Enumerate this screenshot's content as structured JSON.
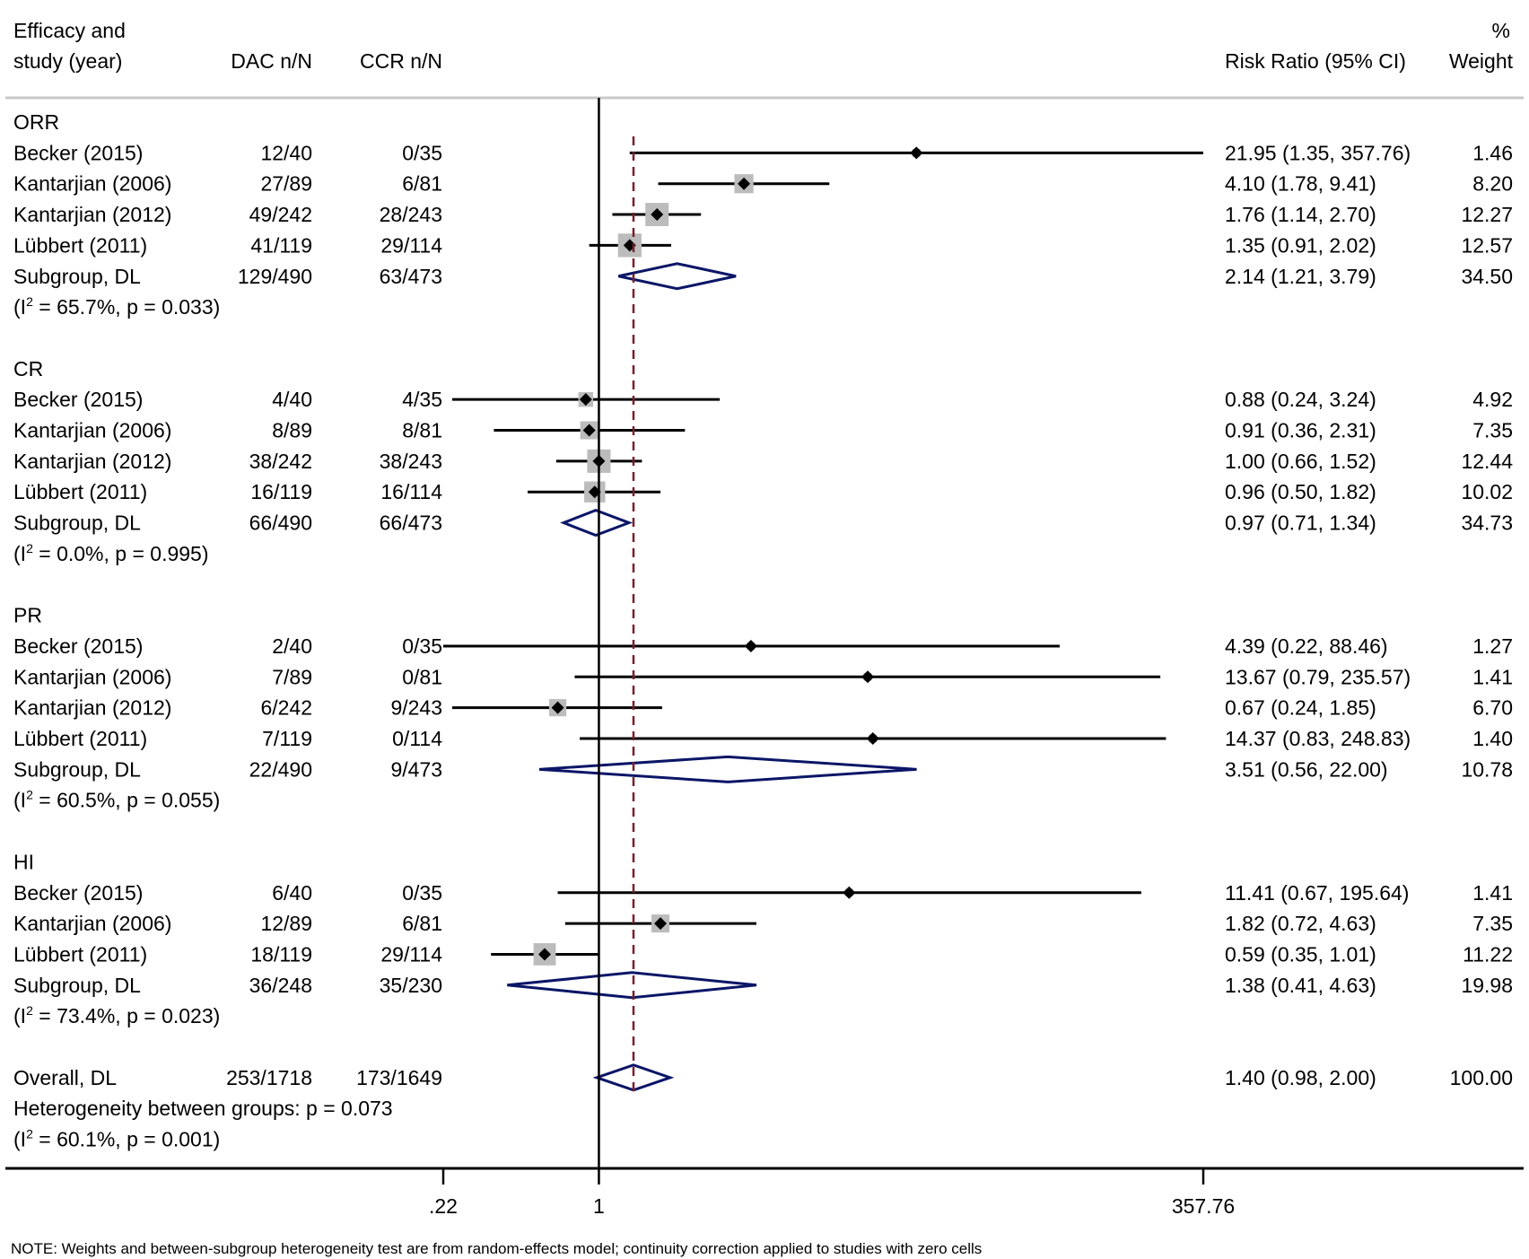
{
  "header": {
    "col_study_line1": "Efficacy and",
    "col_study_line2": "study (year)",
    "col_dac": "DAC n/N",
    "col_ccr": "CCR n/N",
    "col_rr": "Risk Ratio (95% CI)",
    "col_weight_line1": "%",
    "col_weight_line2": "Weight"
  },
  "chart_data": {
    "type": "forest",
    "scale": "log",
    "xlim": [
      0.22,
      357.76
    ],
    "null_line": 1,
    "overall_line": 1.4,
    "xticks": [
      {
        "value": 0.22,
        "label": ".22"
      },
      {
        "value": 1,
        "label": "1"
      },
      {
        "value": 357.76,
        "label": "357.76"
      }
    ],
    "note": "NOTE: Weights and between-subgroup heterogeneity test are from random-effects model; continuity correction applied to studies with zero cells",
    "groups": [
      {
        "name": "ORR",
        "studies": [
          {
            "study": "Becker (2015)",
            "dac": "12/40",
            "ccr": "0/35",
            "rr": 21.95,
            "lo": 1.35,
            "hi": 357.76,
            "ci_text": "21.95 (1.35, 357.76)",
            "weight": 1.46,
            "weight_text": "1.46"
          },
          {
            "study": "Kantarjian (2006)",
            "dac": "27/89",
            "ccr": "6/81",
            "rr": 4.1,
            "lo": 1.78,
            "hi": 9.41,
            "ci_text": "4.10 (1.78, 9.41)",
            "weight": 8.2,
            "weight_text": "8.20"
          },
          {
            "study": "Kantarjian (2012)",
            "dac": "49/242",
            "ccr": "28/243",
            "rr": 1.76,
            "lo": 1.14,
            "hi": 2.7,
            "ci_text": "1.76 (1.14, 2.70)",
            "weight": 12.27,
            "weight_text": "12.27"
          },
          {
            "study": "Lübbert (2011)",
            "dac": "41/119",
            "ccr": "29/114",
            "rr": 1.35,
            "lo": 0.91,
            "hi": 2.02,
            "ci_text": "1.35 (0.91, 2.02)",
            "weight": 12.57,
            "weight_text": "12.57"
          }
        ],
        "subgroup": {
          "label": "Subgroup, DL",
          "dac": "129/490",
          "ccr": "63/473",
          "rr": 2.14,
          "lo": 1.21,
          "hi": 3.79,
          "ci_text": "2.14 (1.21, 3.79)",
          "weight_text": "34.50"
        },
        "het_pre": "(I",
        "het_sup": "2",
        "het_post": " = 65.7%, p = 0.033)"
      },
      {
        "name": "CR",
        "studies": [
          {
            "study": "Becker (2015)",
            "dac": "4/40",
            "ccr": "4/35",
            "rr": 0.88,
            "lo": 0.24,
            "hi": 3.24,
            "ci_text": "0.88 (0.24, 3.24)",
            "weight": 4.92,
            "weight_text": "4.92"
          },
          {
            "study": "Kantarjian (2006)",
            "dac": "8/89",
            "ccr": "8/81",
            "rr": 0.91,
            "lo": 0.36,
            "hi": 2.31,
            "ci_text": "0.91 (0.36, 2.31)",
            "weight": 7.35,
            "weight_text": "7.35"
          },
          {
            "study": "Kantarjian (2012)",
            "dac": "38/242",
            "ccr": "38/243",
            "rr": 1.0,
            "lo": 0.66,
            "hi": 1.52,
            "ci_text": "1.00 (0.66, 1.52)",
            "weight": 12.44,
            "weight_text": "12.44"
          },
          {
            "study": "Lübbert (2011)",
            "dac": "16/119",
            "ccr": "16/114",
            "rr": 0.96,
            "lo": 0.5,
            "hi": 1.82,
            "ci_text": "0.96 (0.50, 1.82)",
            "weight": 10.02,
            "weight_text": "10.02"
          }
        ],
        "subgroup": {
          "label": "Subgroup, DL",
          "dac": "66/490",
          "ccr": "66/473",
          "rr": 0.97,
          "lo": 0.71,
          "hi": 1.34,
          "ci_text": "0.97 (0.71, 1.34)",
          "weight_text": "34.73"
        },
        "het_pre": "(I",
        "het_sup": "2",
        "het_post": " = 0.0%, p = 0.995)"
      },
      {
        "name": "PR",
        "studies": [
          {
            "study": "Becker (2015)",
            "dac": "2/40",
            "ccr": "0/35",
            "rr": 4.39,
            "lo": 0.22,
            "hi": 88.46,
            "ci_text": "4.39 (0.22, 88.46)",
            "weight": 1.27,
            "weight_text": "1.27"
          },
          {
            "study": "Kantarjian (2006)",
            "dac": "7/89",
            "ccr": "0/81",
            "rr": 13.67,
            "lo": 0.79,
            "hi": 235.57,
            "ci_text": "13.67 (0.79, 235.57)",
            "weight": 1.41,
            "weight_text": "1.41"
          },
          {
            "study": "Kantarjian (2012)",
            "dac": "6/242",
            "ccr": "9/243",
            "rr": 0.67,
            "lo": 0.24,
            "hi": 1.85,
            "ci_text": "0.67 (0.24, 1.85)",
            "weight": 6.7,
            "weight_text": "6.70"
          },
          {
            "study": "Lübbert (2011)",
            "dac": "7/119",
            "ccr": "0/114",
            "rr": 14.37,
            "lo": 0.83,
            "hi": 248.83,
            "ci_text": "14.37 (0.83, 248.83)",
            "weight": 1.4,
            "weight_text": "1.40"
          }
        ],
        "subgroup": {
          "label": "Subgroup, DL",
          "dac": "22/490",
          "ccr": "9/473",
          "rr": 3.51,
          "lo": 0.56,
          "hi": 22.0,
          "ci_text": "3.51 (0.56, 22.00)",
          "weight_text": "10.78"
        },
        "het_pre": "(I",
        "het_sup": "2",
        "het_post": " = 60.5%, p = 0.055)"
      },
      {
        "name": "HI",
        "studies": [
          {
            "study": "Becker (2015)",
            "dac": "6/40",
            "ccr": "0/35",
            "rr": 11.41,
            "lo": 0.67,
            "hi": 195.64,
            "ci_text": "11.41 (0.67, 195.64)",
            "weight": 1.41,
            "weight_text": "1.41"
          },
          {
            "study": "Kantarjian (2006)",
            "dac": "12/89",
            "ccr": "6/81",
            "rr": 1.82,
            "lo": 0.72,
            "hi": 4.63,
            "ci_text": "1.82 (0.72, 4.63)",
            "weight": 7.35,
            "weight_text": "7.35"
          },
          {
            "study": "Lübbert (2011)",
            "dac": "18/119",
            "ccr": "29/114",
            "rr": 0.59,
            "lo": 0.35,
            "hi": 1.01,
            "ci_text": "0.59 (0.35, 1.01)",
            "weight": 11.22,
            "weight_text": "11.22"
          }
        ],
        "subgroup": {
          "label": "Subgroup, DL",
          "dac": "36/248",
          "ccr": "35/230",
          "rr": 1.38,
          "lo": 0.41,
          "hi": 4.63,
          "ci_text": "1.38 (0.41, 4.63)",
          "weight_text": "19.98"
        },
        "het_pre": "(I",
        "het_sup": "2",
        "het_post": " = 73.4%, p = 0.023)"
      }
    ],
    "overall": {
      "label": "Overall, DL",
      "dac": "253/1718",
      "ccr": "173/1649",
      "rr": 1.4,
      "lo": 0.98,
      "hi": 2.0,
      "ci_text": "1.40 (0.98, 2.00)",
      "weight_text": "100.00",
      "between": "Heterogeneity between groups: p = 0.073",
      "het_pre": "(I",
      "het_sup": "2",
      "het_post": " = 60.1%, p = 0.001)"
    },
    "colors": {
      "line": "#000000",
      "box": "#bcbcbc",
      "diamond": "#0b1667",
      "overall_line": "#7a1f2b"
    }
  }
}
